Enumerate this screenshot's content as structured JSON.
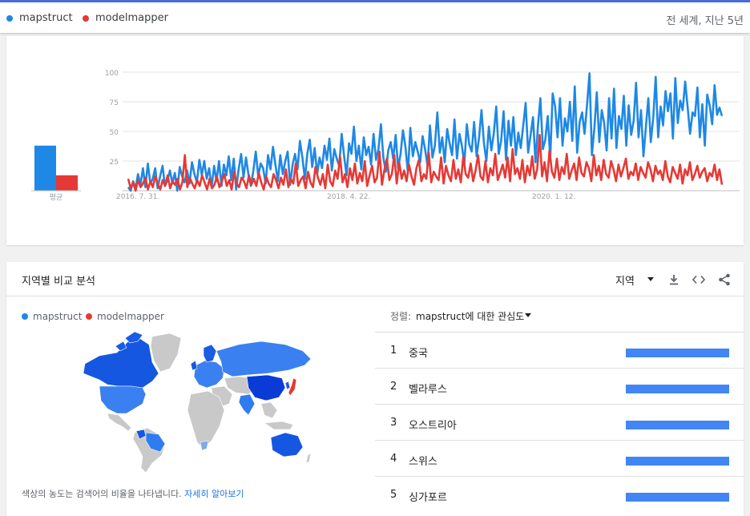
{
  "legend": {
    "terms": [
      {
        "label": "mapstruct",
        "color": "#1e88e5"
      },
      {
        "label": "modelmapper",
        "color": "#e53935"
      }
    ],
    "scope": "전 세계, 지난 5년"
  },
  "chart_data": {
    "type": "line",
    "x_ticks": [
      "2016. 7. 31.",
      "2018. 4. 22.",
      "2020. 1. 12."
    ],
    "y_ticks": [
      25,
      50,
      75,
      100
    ],
    "ylim": [
      0,
      100
    ],
    "average": {
      "label": "평균",
      "values": [
        38,
        13
      ]
    },
    "series": [
      {
        "name": "mapstruct",
        "color": "#1e88e5",
        "values": [
          3,
          0,
          8,
          2,
          14,
          5,
          19,
          3,
          23,
          6,
          10,
          19,
          2,
          12,
          21,
          4,
          9,
          17,
          6,
          15,
          0,
          20,
          12,
          7,
          17,
          6,
          24,
          14,
          7,
          26,
          13,
          25,
          10,
          19,
          3,
          21,
          8,
          25,
          4,
          22,
          13,
          29,
          9,
          27,
          1,
          18,
          31,
          11,
          28,
          14,
          4,
          17,
          33,
          12,
          23,
          19,
          6,
          30,
          18,
          37,
          22,
          8,
          30,
          14,
          25,
          33,
          5,
          22,
          31,
          18,
          42,
          28,
          10,
          31,
          43,
          20,
          36,
          14,
          28,
          19,
          38,
          26,
          44,
          17,
          35,
          27,
          21,
          48,
          29,
          13,
          40,
          31,
          54,
          25,
          38,
          18,
          45,
          30,
          37,
          22,
          48,
          26,
          35,
          56,
          28,
          16,
          34,
          41,
          27,
          47,
          19,
          31,
          51,
          37,
          15,
          53,
          29,
          41,
          33,
          24,
          46,
          35,
          21,
          55,
          28,
          38,
          66,
          32,
          45,
          24,
          52,
          40,
          30,
          60,
          27,
          48,
          38,
          23,
          56,
          39,
          33,
          58,
          29,
          45,
          68,
          40,
          25,
          54,
          34,
          48,
          71,
          31,
          42,
          67,
          26,
          59,
          38,
          62,
          30,
          49,
          36,
          55,
          74,
          32,
          47,
          62,
          24,
          55,
          78,
          35,
          43,
          63,
          27,
          82,
          71,
          45,
          78,
          38,
          61,
          50,
          75,
          42,
          88,
          32,
          58,
          66,
          48,
          72,
          99,
          30,
          53,
          83,
          41,
          68,
          57,
          34,
          78,
          44,
          86,
          36,
          63,
          52,
          80,
          38,
          72,
          47,
          59,
          91,
          45,
          68,
          29,
          54,
          78,
          41,
          62,
          96,
          45,
          71,
          55,
          84,
          67,
          82,
          44,
          95,
          57,
          76,
          68,
          92,
          71,
          48,
          66,
          63,
          87,
          45,
          73,
          38,
          81,
          72,
          56,
          89,
          64,
          70,
          63
        ]
      },
      {
        "name": "modelmapper",
        "color": "#e53935",
        "values": [
          10,
          2,
          7,
          0,
          9,
          3,
          6,
          11,
          1,
          8,
          3,
          12,
          6,
          1,
          9,
          4,
          13,
          2,
          8,
          5,
          10,
          1,
          7,
          30,
          3,
          11,
          6,
          2,
          9,
          4,
          13,
          7,
          1,
          10,
          2,
          5,
          12,
          3,
          8,
          14,
          4,
          9,
          1,
          16,
          6,
          3,
          11,
          8,
          2,
          13,
          5,
          10,
          4,
          15,
          7,
          1,
          12,
          6,
          3,
          14,
          9,
          2,
          11,
          5,
          18,
          3,
          10,
          6,
          23,
          4,
          9,
          12,
          2,
          16,
          7,
          3,
          20,
          11,
          5,
          14,
          2,
          22,
          8,
          4,
          17,
          10,
          29,
          7,
          14,
          3,
          19,
          9,
          23,
          6,
          15,
          8,
          25,
          4,
          13,
          21,
          7,
          11,
          33,
          5,
          18,
          27,
          9,
          14,
          30,
          6,
          24,
          10,
          17,
          8,
          22,
          12,
          5,
          19,
          26,
          8,
          14,
          10,
          32,
          7,
          16,
          12,
          9,
          28,
          6,
          21,
          13,
          8,
          26,
          10,
          18,
          7,
          29,
          14,
          11,
          23,
          8,
          17,
          30,
          12,
          9,
          25,
          7,
          19,
          13,
          31,
          9,
          15,
          22,
          11,
          28,
          8,
          35,
          14,
          19,
          10,
          26,
          7,
          21,
          13,
          29,
          10,
          18,
          47,
          12,
          24,
          8,
          34,
          16,
          11,
          27,
          9,
          20,
          14,
          31,
          10,
          17,
          23,
          9,
          28,
          15,
          12,
          24,
          19,
          8,
          30,
          13,
          21,
          9,
          26,
          14,
          11,
          25,
          18,
          8,
          22,
          12,
          19,
          27,
          10,
          16,
          13,
          23,
          9,
          20,
          15,
          11,
          24,
          18,
          8,
          21,
          14,
          17,
          9,
          25,
          12,
          7,
          20,
          15,
          10,
          22,
          6,
          18,
          13,
          24,
          9,
          14,
          21,
          11,
          16,
          19,
          8,
          15,
          12,
          22,
          9,
          18,
          5
        ]
      }
    ]
  },
  "region": {
    "title": "지역별 비교 분석",
    "resolution": "지역",
    "legend": [
      {
        "label": "mapstruct",
        "color": "#1e88e5"
      },
      {
        "label": "modelmapper",
        "color": "#e53935"
      }
    ],
    "sort_label": "정렬:",
    "sort_value": "mapstruct에 대한 관심도",
    "rows": [
      {
        "rank": "1",
        "name": "중국",
        "share": 1.0
      },
      {
        "rank": "2",
        "name": "벨라루스",
        "share": 1.0
      },
      {
        "rank": "3",
        "name": "오스트리아",
        "share": 1.0
      },
      {
        "rank": "4",
        "name": "스위스",
        "share": 1.0
      },
      {
        "rank": "5",
        "name": "싱가포르",
        "share": 1.0
      }
    ],
    "footnote_text": "색상의 농도는 검색어의 비율을 나타냅니다.",
    "footnote_link": "자세히 알아보기"
  }
}
